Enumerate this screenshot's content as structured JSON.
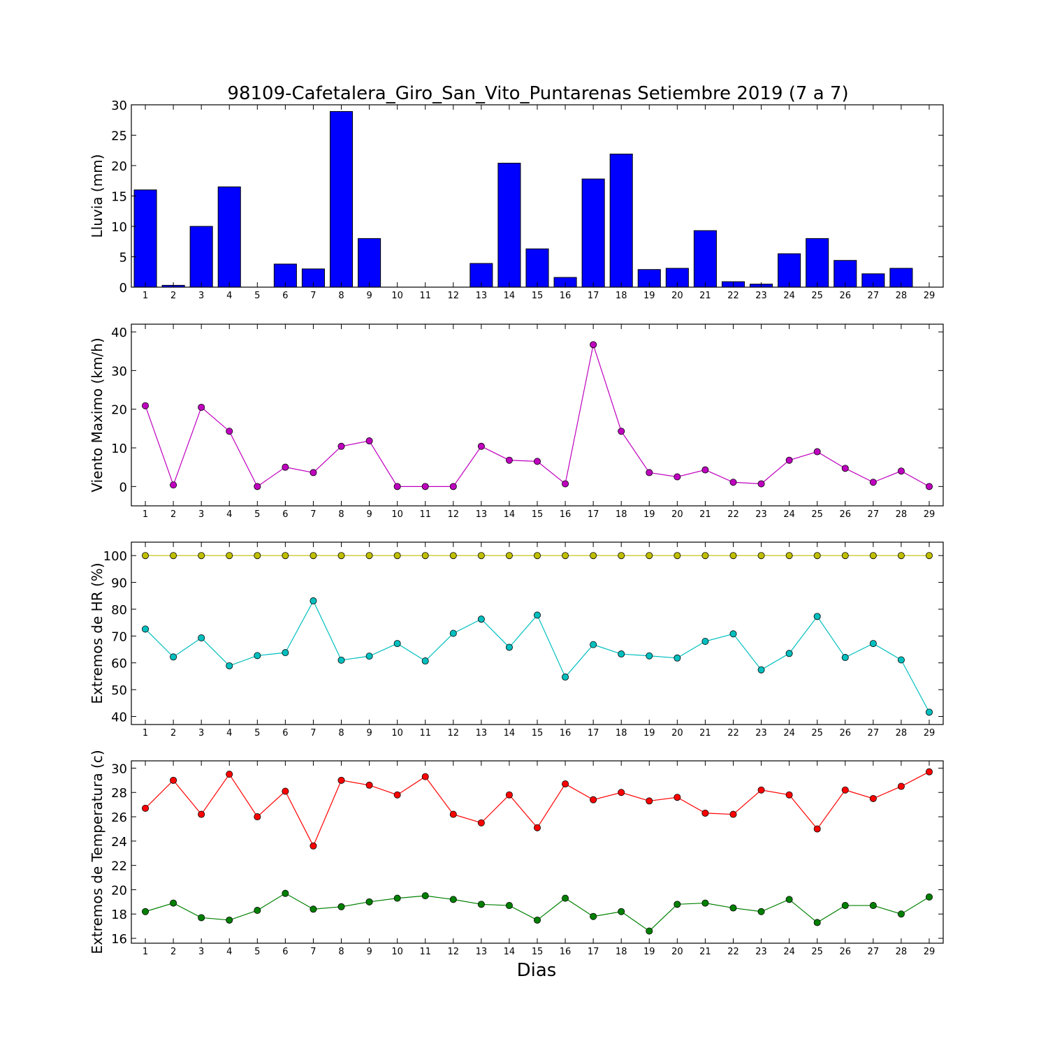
{
  "figure": {
    "title": "98109-Cafetalera_Giro_San_Vito_Puntarenas Setiembre 2019  (7 a 7)",
    "xlabel": "Dias"
  },
  "chart_data": [
    {
      "type": "bar",
      "ylabel": "Lluvia (mm)",
      "x": [
        1,
        2,
        3,
        4,
        5,
        6,
        7,
        8,
        9,
        10,
        11,
        12,
        13,
        14,
        15,
        16,
        17,
        18,
        19,
        20,
        21,
        22,
        23,
        24,
        25,
        26,
        27,
        28,
        29
      ],
      "ylim": [
        0,
        30
      ],
      "yticks": [
        0,
        5,
        10,
        15,
        20,
        25,
        30
      ],
      "series": [
        {
          "color": "#0000ff",
          "values": [
            16.0,
            0.3,
            10.0,
            16.5,
            0,
            3.8,
            3.0,
            28.9,
            8.0,
            0,
            0,
            0,
            3.9,
            20.4,
            6.3,
            1.6,
            17.8,
            21.9,
            2.9,
            3.1,
            9.3,
            0.9,
            0.5,
            5.5,
            8.0,
            4.4,
            2.2,
            3.1,
            0
          ]
        }
      ],
      "grid": false,
      "legend": "none"
    },
    {
      "type": "line",
      "ylabel": "Viento Maximo (km/h)",
      "x": [
        1,
        2,
        3,
        4,
        5,
        6,
        7,
        8,
        9,
        10,
        11,
        12,
        13,
        14,
        15,
        16,
        17,
        18,
        19,
        20,
        21,
        22,
        23,
        24,
        25,
        26,
        27,
        28,
        29
      ],
      "ylim": [
        -5,
        42
      ],
      "yticks": [
        0,
        10,
        20,
        30,
        40
      ],
      "series": [
        {
          "color": "#bf00bf",
          "values": [
            20.9,
            0.4,
            20.5,
            14.3,
            0,
            5.0,
            3.6,
            10.4,
            11.8,
            0,
            0,
            0,
            10.4,
            6.8,
            6.5,
            0.7,
            36.7,
            14.3,
            3.6,
            2.5,
            4.3,
            1.1,
            0.7,
            6.8,
            9.0,
            4.7,
            1.1,
            4.0,
            0
          ]
        }
      ],
      "grid": false,
      "legend": "none"
    },
    {
      "type": "line",
      "ylabel": "Extremos de HR (%)",
      "x": [
        1,
        2,
        3,
        4,
        5,
        6,
        7,
        8,
        9,
        10,
        11,
        12,
        13,
        14,
        15,
        16,
        17,
        18,
        19,
        20,
        21,
        22,
        23,
        24,
        25,
        26,
        27,
        28,
        29
      ],
      "ylim": [
        37,
        105
      ],
      "yticks": [
        40,
        50,
        60,
        70,
        80,
        90,
        100
      ],
      "series": [
        {
          "color": "#bfbf00",
          "values": [
            100,
            100,
            100,
            100,
            100,
            100,
            100,
            100,
            100,
            100,
            100,
            100,
            100,
            100,
            100,
            100,
            100,
            100,
            100,
            100,
            100,
            100,
            100,
            100,
            100,
            100,
            100,
            100,
            100
          ]
        },
        {
          "color": "#00bfbf",
          "values": [
            72.6,
            62.2,
            69.3,
            58.9,
            62.7,
            63.8,
            83.1,
            61.0,
            62.5,
            67.2,
            60.7,
            71.0,
            76.3,
            65.8,
            77.8,
            54.7,
            66.8,
            63.3,
            62.6,
            61.8,
            68.0,
            70.8,
            57.4,
            63.5,
            77.3,
            62.0,
            67.2,
            61.1,
            41.6
          ]
        }
      ],
      "grid": false,
      "legend": "none"
    },
    {
      "type": "line",
      "ylabel": "Extremos de Temperatura (c)",
      "x": [
        1,
        2,
        3,
        4,
        5,
        6,
        7,
        8,
        9,
        10,
        11,
        12,
        13,
        14,
        15,
        16,
        17,
        18,
        19,
        20,
        21,
        22,
        23,
        24,
        25,
        26,
        27,
        28,
        29
      ],
      "ylim": [
        15.6,
        30.6
      ],
      "yticks": [
        16,
        18,
        20,
        22,
        24,
        26,
        28,
        30
      ],
      "series": [
        {
          "color": "#ff0000",
          "values": [
            26.7,
            29.0,
            26.2,
            29.5,
            26.0,
            28.1,
            23.6,
            29.0,
            28.6,
            27.8,
            29.3,
            26.2,
            25.5,
            27.8,
            25.1,
            28.7,
            27.4,
            28.0,
            27.3,
            27.6,
            26.3,
            26.2,
            28.2,
            27.8,
            25.0,
            28.2,
            27.5,
            28.5,
            29.7
          ]
        },
        {
          "color": "#008000",
          "values": [
            18.2,
            18.9,
            17.7,
            17.5,
            18.3,
            19.7,
            18.4,
            18.6,
            19.0,
            19.3,
            19.5,
            19.2,
            18.8,
            18.7,
            17.5,
            19.3,
            17.8,
            18.2,
            16.6,
            18.8,
            18.9,
            18.5,
            18.2,
            19.2,
            17.3,
            18.7,
            18.7,
            18.0,
            19.4
          ]
        }
      ],
      "grid": false,
      "legend": "none"
    }
  ]
}
